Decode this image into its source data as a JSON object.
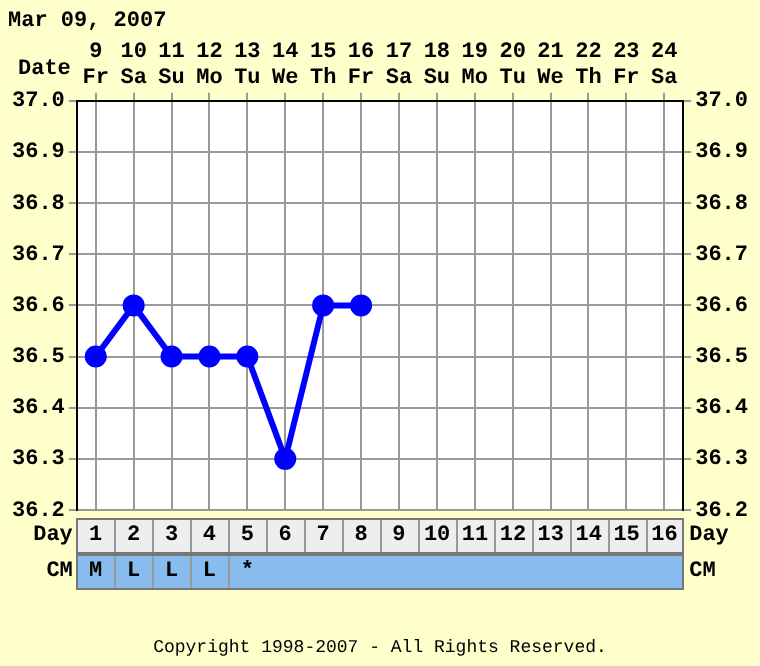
{
  "chart_data": {
    "type": "line",
    "title": "Mar 09, 2007",
    "xlabel": "Date",
    "categories": [
      "9 Fr",
      "10 Sa",
      "11 Su",
      "12 Mo",
      "13 Tu",
      "14 We",
      "15 Th",
      "16 Fr",
      "17 Sa",
      "18 Su",
      "19 Mo",
      "20 Tu",
      "21 We",
      "22 Th",
      "23 Fr",
      "24 Sa"
    ],
    "series": [
      {
        "color": "#0000ff",
        "values": [
          36.5,
          36.6,
          36.5,
          36.5,
          36.5,
          36.3,
          36.6,
          36.6,
          null,
          null,
          null,
          null,
          null,
          null,
          null,
          null
        ]
      }
    ],
    "ylim": [
      36.2,
      37.0
    ],
    "yticks": [
      36.2,
      36.3,
      36.4,
      36.5,
      36.6,
      36.7,
      36.8,
      36.9,
      {
        "value": 37,
        "label": "37.0"
      }
    ],
    "y2lim": [
      36.2,
      37.0
    ],
    "y2ticks": [
      36.2,
      36.3,
      36.4,
      36.5,
      36.6,
      36.7,
      36.8,
      36.9,
      {
        "value": 37,
        "label": "37.0"
      }
    ],
    "grid": true,
    "marker": "circle",
    "line_style": "solid",
    "annotations": [
      "Day",
      "1",
      "2",
      "3",
      "4",
      "5",
      "6",
      "7",
      "8",
      "9",
      "10",
      "11",
      "12",
      "13",
      "14",
      "15",
      "16",
      "CM",
      "M",
      "L",
      "L",
      "L",
      "*",
      "Copyright 1998-2007 - All Rights Reserved."
    ]
  }
}
